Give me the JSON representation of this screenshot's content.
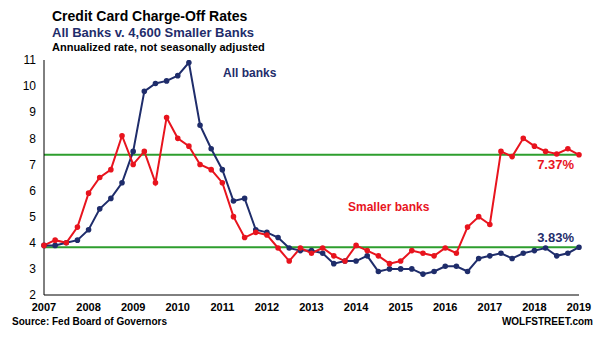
{
  "chart_data": {
    "type": "line",
    "title": "Credit Card Charge-Off Rates",
    "subtitle": "All Banks v. 4,600 Smaller Banks",
    "note": "Annualized rate, not seasonally adjusted",
    "source": "Source: Fed Board of Governors",
    "credit": "WOLFSTREET.com",
    "categories": [
      "2007",
      null,
      null,
      null,
      "2008",
      null,
      null,
      null,
      "2009",
      null,
      null,
      null,
      "2010",
      null,
      null,
      null,
      "2011",
      null,
      null,
      null,
      "2012",
      null,
      null,
      null,
      "2013",
      null,
      null,
      null,
      "2014",
      null,
      null,
      null,
      "2015",
      null,
      null,
      null,
      "2016",
      null,
      null,
      null,
      "2017",
      null,
      null,
      null,
      "2018",
      null,
      null,
      null,
      "2019"
    ],
    "series": [
      {
        "name": "All banks",
        "color": "#1f2d6b",
        "values": [
          3.9,
          3.9,
          4.0,
          4.1,
          4.5,
          5.3,
          5.7,
          6.3,
          7.5,
          9.8,
          10.1,
          10.2,
          10.4,
          10.9,
          8.5,
          7.6,
          6.8,
          5.6,
          5.7,
          4.5,
          4.4,
          4.2,
          3.8,
          3.7,
          3.7,
          3.6,
          3.2,
          3.3,
          3.3,
          3.5,
          2.9,
          3.0,
          3.0,
          3.0,
          2.8,
          2.9,
          3.1,
          3.1,
          2.9,
          3.4,
          3.5,
          3.6,
          3.4,
          3.6,
          3.7,
          3.8,
          3.5,
          3.6,
          3.83
        ]
      },
      {
        "name": "Smaller banks",
        "color": "#e8141e",
        "values": [
          3.9,
          4.1,
          4.0,
          4.6,
          5.9,
          6.5,
          6.8,
          8.1,
          7.0,
          7.5,
          6.3,
          8.8,
          8.0,
          7.7,
          7.0,
          6.8,
          6.3,
          5.0,
          4.2,
          4.4,
          4.3,
          3.8,
          3.3,
          3.8,
          3.6,
          3.8,
          3.5,
          3.3,
          3.9,
          3.7,
          3.5,
          3.2,
          3.3,
          3.7,
          3.6,
          3.5,
          3.8,
          3.6,
          4.6,
          5.0,
          4.7,
          7.5,
          7.3,
          8.0,
          7.7,
          7.5,
          7.4,
          7.6,
          7.37
        ]
      }
    ],
    "reference_lines": [
      {
        "value": 3.83,
        "label": "3.83%",
        "color": "#2e9e2e"
      },
      {
        "value": 7.37,
        "label": "7.37%",
        "color": "#2e9e2e"
      }
    ],
    "ylim": [
      2,
      11
    ],
    "yticks": [
      2,
      3,
      4,
      5,
      6,
      7,
      8,
      9,
      10,
      11
    ],
    "grid": false,
    "marker": "circle"
  }
}
